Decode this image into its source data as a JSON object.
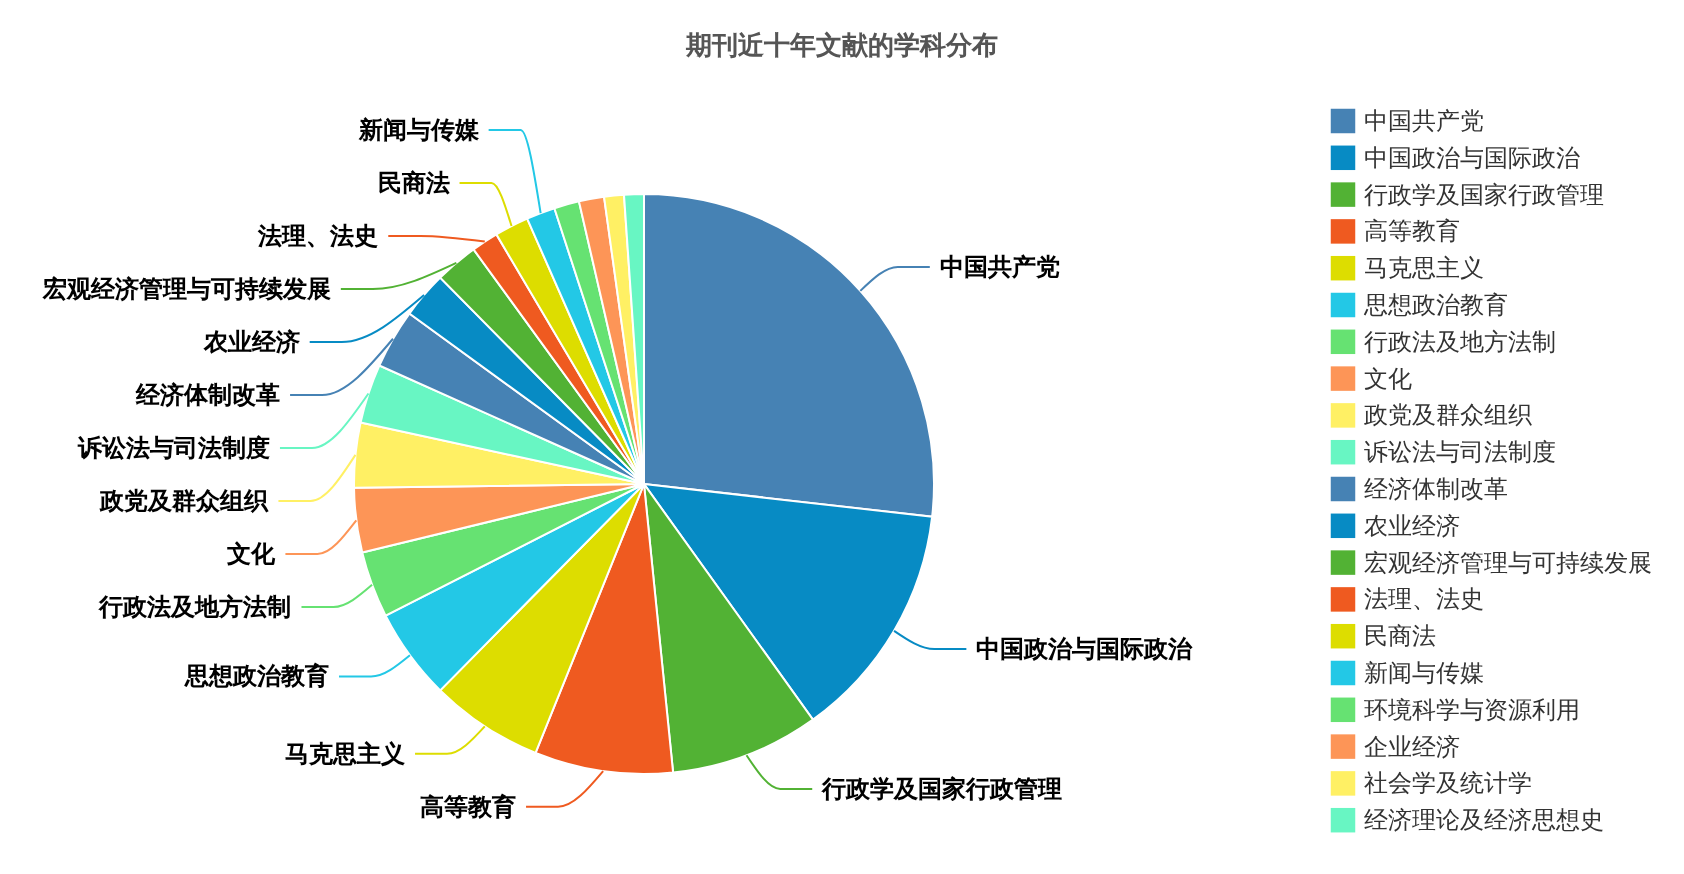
{
  "chart_data": {
    "type": "pie",
    "title": "期刊近十年文献的学科分布",
    "categories": [
      "中国共产党",
      "中国政治与国际政治",
      "行政学及国家行政管理",
      "高等教育",
      "马克思主义",
      "思想政治教育",
      "行政法及地方法制",
      "文化",
      "政党及群众组织",
      "诉讼法与司法制度",
      "经济体制改革",
      "农业经济",
      "宏观经济管理与可持续发展",
      "法理、法史",
      "民商法",
      "新闻与传媒",
      "环境科学与资源利用",
      "企业经济",
      "社会学及统计学",
      "经济理论及经济思想史"
    ],
    "values": [
      26.8,
      13.3,
      8.3,
      7.7,
      6.3,
      5.1,
      3.7,
      3.6,
      3.6,
      3.3,
      3.3,
      2.6,
      2.4,
      1.5,
      1.9,
      1.6,
      1.4,
      1.4,
      1.1,
      1.1
    ],
    "colors": [
      "#4682b4",
      "#078bc4",
      "#52b234",
      "#ef5a20",
      "#dddd00",
      "#23c8e6",
      "#66e272",
      "#fd9557",
      "#fff064",
      "#68f6c3",
      "#4682b4",
      "#078bc4",
      "#52b234",
      "#ef5a20",
      "#dddd00",
      "#23c8e6",
      "#66e272",
      "#fd9557",
      "#fff064",
      "#68f6c3"
    ],
    "legend": "right"
  }
}
